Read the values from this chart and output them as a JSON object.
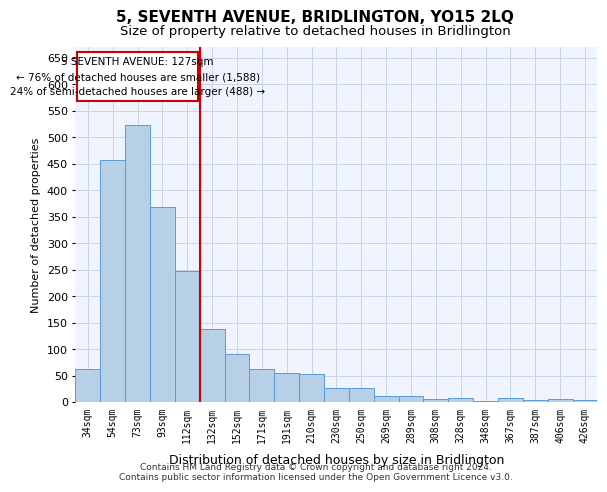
{
  "title": "5, SEVENTH AVENUE, BRIDLINGTON, YO15 2LQ",
  "subtitle": "Size of property relative to detached houses in Bridlington",
  "xlabel": "Distribution of detached houses by size in Bridlington",
  "ylabel": "Number of detached properties",
  "categories": [
    "34sqm",
    "54sqm",
    "73sqm",
    "93sqm",
    "112sqm",
    "132sqm",
    "152sqm",
    "171sqm",
    "191sqm",
    "210sqm",
    "230sqm",
    "250sqm",
    "269sqm",
    "289sqm",
    "308sqm",
    "328sqm",
    "348sqm",
    "367sqm",
    "387sqm",
    "406sqm",
    "426sqm"
  ],
  "values": [
    62,
    457,
    523,
    368,
    247,
    138,
    91,
    62,
    55,
    53,
    26,
    26,
    11,
    12,
    5,
    8,
    1,
    8,
    3,
    5,
    3
  ],
  "bar_color": "#b8cfe8",
  "bar_edge_color": "#5b9bd5",
  "grid_color": "#c8d4e8",
  "background_color": "#f0f4ff",
  "vline_x": 4.5,
  "vline_color": "#cc0000",
  "annotation_text": "5 SEVENTH AVENUE: 127sqm\n← 76% of detached houses are smaller (1,588)\n24% of semi-detached houses are larger (488) →",
  "annotation_box_color": "#ffffff",
  "annotation_box_edge": "#cc0000",
  "footer": "Contains HM Land Registry data © Crown copyright and database right 2024.\nContains public sector information licensed under the Open Government Licence v3.0.",
  "ylim": [
    0,
    670
  ],
  "yticks": [
    0,
    50,
    100,
    150,
    200,
    250,
    300,
    350,
    400,
    450,
    500,
    550,
    600,
    650
  ]
}
